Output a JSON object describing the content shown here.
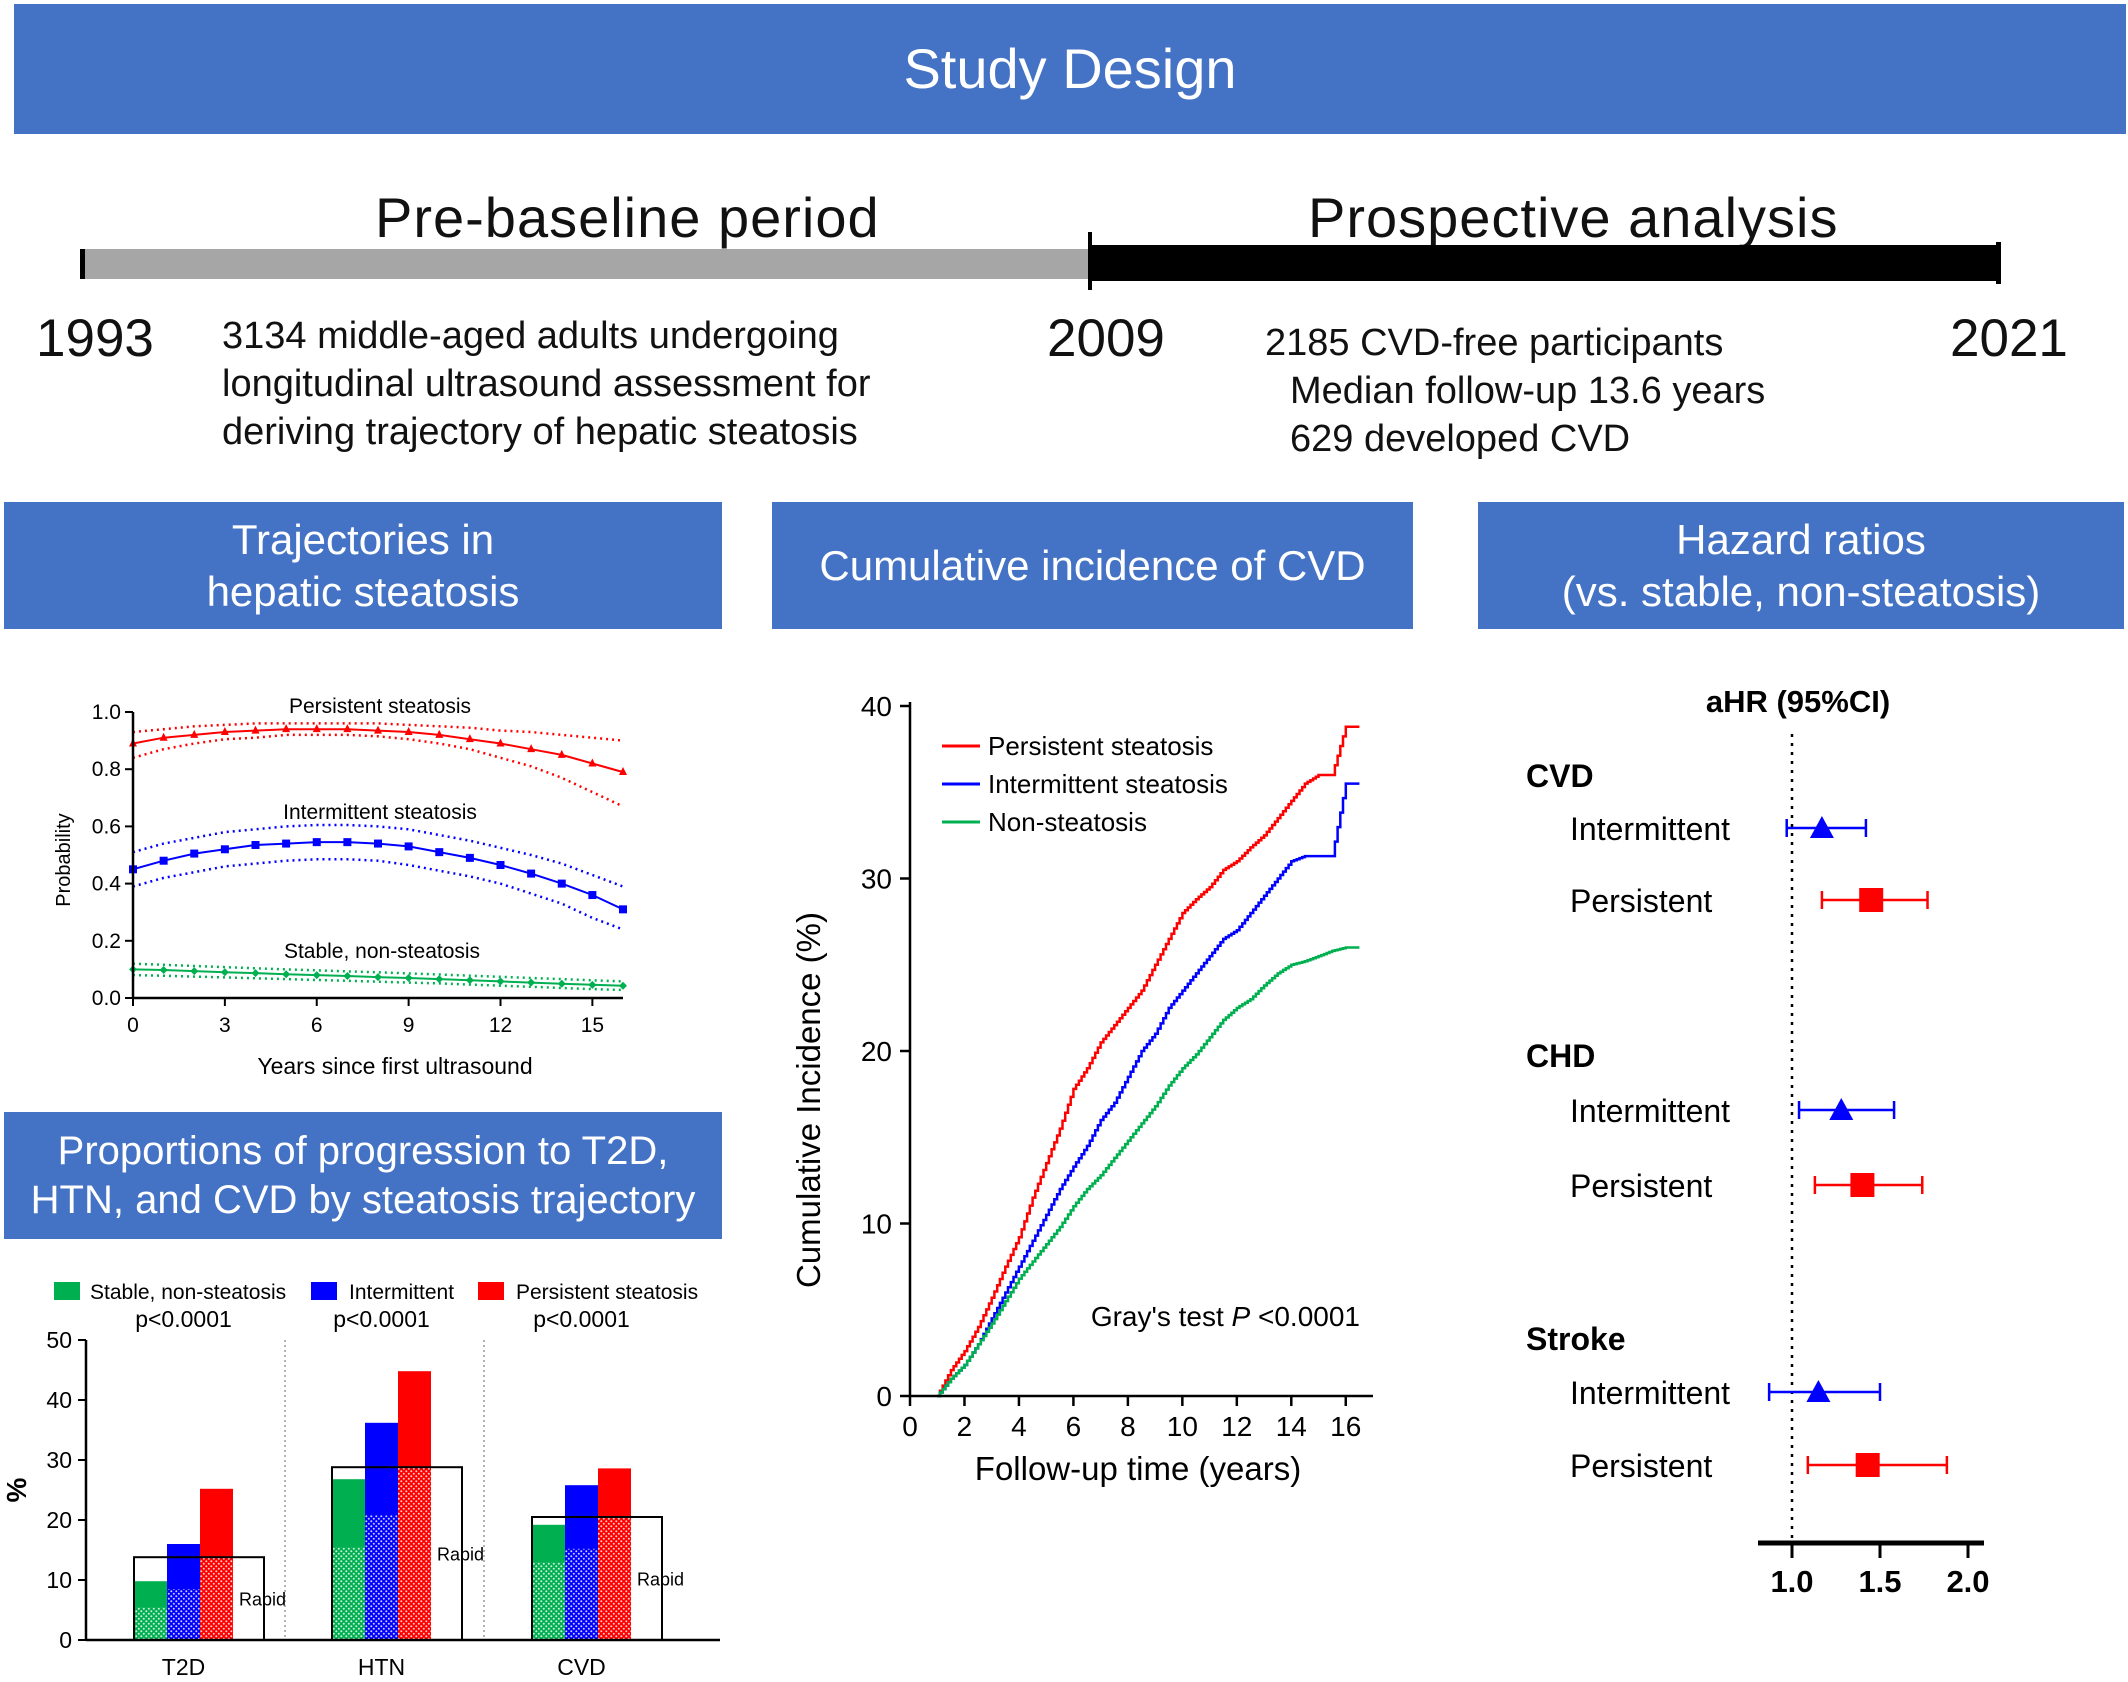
{
  "header": {
    "title": "Study Design"
  },
  "timeline": {
    "pre_label": "Pre-baseline period",
    "post_label": "Prospective analysis",
    "year_start": "1993",
    "year_mid": "2009",
    "year_end": "2021",
    "pre_desc": [
      "3134 middle-aged adults undergoing",
      "longitudinal ultrasound assessment for",
      "deriving trajectory of hepatic steatosis"
    ],
    "post_desc": [
      "2185 CVD-free participants",
      "Median follow-up 13.6 years",
      "629 developed CVD"
    ],
    "colors": {
      "pre": "#a6a6a6",
      "post": "#000000"
    }
  },
  "panels": {
    "trajectories": [
      "Trajectories in",
      "hepatic steatosis"
    ],
    "incidence": "Cumulative incidence of CVD",
    "hazard": [
      "Hazard ratios",
      "(vs. stable, non-steatosis)"
    ],
    "proportions": [
      "Proportions of progression to T2D,",
      "HTN, and CVD by steatosis trajectory"
    ]
  },
  "chart_data": [
    {
      "id": "trajectory",
      "type": "line",
      "xlabel": "Years since first ultrasound",
      "ylabel": "Probability",
      "xlim": [
        0,
        16
      ],
      "ylim": [
        0,
        1
      ],
      "xticks": [
        "0",
        "3",
        "6",
        "9",
        "12",
        "15"
      ],
      "yticks": [
        "0.0",
        "0.2",
        "0.4",
        "0.6",
        "0.8",
        "1.0"
      ],
      "x": [
        0,
        1,
        2,
        3,
        4,
        5,
        6,
        7,
        8,
        9,
        10,
        11,
        12,
        13,
        14,
        15,
        16
      ],
      "series": [
        {
          "name": "Persistent steatosis",
          "color": "#ff0000",
          "marker": "triangle",
          "values": [
            0.89,
            0.91,
            0.92,
            0.93,
            0.935,
            0.94,
            0.94,
            0.94,
            0.935,
            0.93,
            0.92,
            0.905,
            0.89,
            0.87,
            0.85,
            0.82,
            0.79
          ],
          "upper": [
            0.93,
            0.94,
            0.95,
            0.955,
            0.96,
            0.96,
            0.96,
            0.96,
            0.96,
            0.955,
            0.95,
            0.945,
            0.935,
            0.93,
            0.92,
            0.91,
            0.9
          ],
          "lower": [
            0.84,
            0.87,
            0.89,
            0.905,
            0.91,
            0.92,
            0.92,
            0.92,
            0.915,
            0.905,
            0.89,
            0.87,
            0.84,
            0.81,
            0.77,
            0.72,
            0.67
          ]
        },
        {
          "name": "Intermittent steatosis",
          "color": "#0000ff",
          "marker": "square",
          "values": [
            0.45,
            0.48,
            0.505,
            0.52,
            0.535,
            0.54,
            0.545,
            0.545,
            0.54,
            0.53,
            0.51,
            0.49,
            0.465,
            0.435,
            0.4,
            0.36,
            0.31
          ],
          "upper": [
            0.51,
            0.54,
            0.56,
            0.58,
            0.59,
            0.6,
            0.605,
            0.605,
            0.6,
            0.59,
            0.57,
            0.55,
            0.525,
            0.5,
            0.47,
            0.43,
            0.39
          ],
          "lower": [
            0.39,
            0.42,
            0.44,
            0.46,
            0.47,
            0.48,
            0.485,
            0.485,
            0.48,
            0.465,
            0.445,
            0.425,
            0.4,
            0.365,
            0.33,
            0.28,
            0.24
          ]
        },
        {
          "name": "Stable, non-steatosis",
          "color": "#00b050",
          "marker": "diamond",
          "values": [
            0.1,
            0.098,
            0.094,
            0.09,
            0.087,
            0.083,
            0.08,
            0.077,
            0.073,
            0.07,
            0.066,
            0.062,
            0.058,
            0.054,
            0.05,
            0.046,
            0.043
          ],
          "upper": [
            0.12,
            0.116,
            0.112,
            0.108,
            0.104,
            0.1,
            0.097,
            0.093,
            0.09,
            0.086,
            0.082,
            0.078,
            0.074,
            0.07,
            0.066,
            0.062,
            0.058
          ],
          "lower": [
            0.08,
            0.078,
            0.075,
            0.072,
            0.069,
            0.066,
            0.063,
            0.06,
            0.057,
            0.054,
            0.051,
            0.047,
            0.043,
            0.039,
            0.035,
            0.031,
            0.028
          ]
        }
      ]
    },
    {
      "id": "cumulative_incidence",
      "type": "line",
      "step": true,
      "xlabel": "Follow-up time (years)",
      "ylabel": "Cumulative Incidence (%)",
      "xlim": [
        0,
        17
      ],
      "ylim": [
        0,
        40
      ],
      "xticks": [
        "0",
        "2",
        "4",
        "6",
        "8",
        "10",
        "12",
        "14",
        "16"
      ],
      "yticks": [
        "0",
        "10",
        "20",
        "30",
        "40"
      ],
      "x": [
        1,
        1.5,
        2,
        2.5,
        3,
        3.5,
        4,
        4.5,
        5,
        5.5,
        6,
        6.5,
        7,
        7.5,
        8,
        8.5,
        9,
        9.5,
        10,
        10.5,
        11,
        11.5,
        12,
        12.5,
        13,
        13.5,
        14,
        14.5,
        15,
        15.5,
        16,
        16.5
      ],
      "annotation": "Gray's test",
      "annotation_p": "P",
      "annotation_value": "<0.0001",
      "series": [
        {
          "name": "Persistent steatosis",
          "color": "#ff0000",
          "values": [
            0,
            1.5,
            2.6,
            4,
            5.7,
            7.5,
            9.2,
            11.5,
            13.5,
            15.5,
            17.8,
            19,
            20.5,
            21.5,
            22.5,
            23.5,
            25,
            26.5,
            28,
            28.8,
            29.5,
            30.5,
            31,
            31.8,
            32.5,
            33.5,
            34.5,
            35.5,
            36,
            36,
            38.8,
            38.8
          ]
        },
        {
          "name": "Intermittent steatosis",
          "color": "#0000ff",
          "values": [
            0,
            1,
            1.8,
            3,
            4.5,
            6,
            7.5,
            9,
            10.5,
            12,
            13.3,
            14.5,
            16,
            17,
            18.5,
            20,
            21,
            22.5,
            23.5,
            24.5,
            25.5,
            26.5,
            27,
            28,
            29,
            30,
            31,
            31.3,
            31.3,
            31.3,
            35.5,
            35.5
          ]
        },
        {
          "name": "Non-steatosis",
          "color": "#00b050",
          "values": [
            0,
            1,
            1.8,
            3,
            4.2,
            5.5,
            6.8,
            7.8,
            8.8,
            9.8,
            11,
            12,
            12.8,
            13.8,
            14.8,
            15.8,
            16.8,
            18,
            19,
            19.8,
            20.8,
            21.8,
            22.5,
            23,
            23.8,
            24.5,
            25,
            25.2,
            25.5,
            25.8,
            26,
            26
          ]
        }
      ]
    },
    {
      "id": "hazard_ratios",
      "type": "scatter",
      "subtype": "forest",
      "header": "aHR (95%CI)",
      "xlim": [
        0.85,
        2.15
      ],
      "xticks": [
        "1.0",
        "1.5",
        "2.0"
      ],
      "reference": 1.0,
      "groups": [
        {
          "name": "CVD",
          "rows": [
            {
              "label": "Intermittent",
              "hr": 1.17,
              "lo": 0.97,
              "hi": 1.42,
              "color": "#0000ff",
              "marker": "triangle"
            },
            {
              "label": "Persistent",
              "hr": 1.45,
              "lo": 1.17,
              "hi": 1.77,
              "color": "#ff0000",
              "marker": "square"
            }
          ]
        },
        {
          "name": "CHD",
          "rows": [
            {
              "label": "Intermittent",
              "hr": 1.28,
              "lo": 1.04,
              "hi": 1.58,
              "color": "#0000ff",
              "marker": "triangle"
            },
            {
              "label": "Persistent",
              "hr": 1.4,
              "lo": 1.13,
              "hi": 1.74,
              "color": "#ff0000",
              "marker": "square"
            }
          ]
        },
        {
          "name": "Stroke",
          "rows": [
            {
              "label": "Intermittent",
              "hr": 1.15,
              "lo": 0.87,
              "hi": 1.5,
              "color": "#0000ff",
              "marker": "triangle"
            },
            {
              "label": "Persistent",
              "hr": 1.43,
              "lo": 1.09,
              "hi": 1.88,
              "color": "#ff0000",
              "marker": "square"
            }
          ]
        }
      ]
    },
    {
      "id": "progression",
      "type": "bar",
      "ylabel": "%",
      "ylim": [
        0,
        50
      ],
      "yticks": [
        "0",
        "10",
        "20",
        "30",
        "40",
        "50"
      ],
      "categories": [
        "T2D",
        "HTN",
        "CVD"
      ],
      "p_values": [
        "p<0.0001",
        "p<0.0001",
        "p<0.0001"
      ],
      "rapid_label": "Rapid",
      "series": [
        {
          "name": "Stable, non-steatosis",
          "color": "#00b050",
          "values": [
            9.8,
            26.8,
            19.2
          ],
          "rapid": [
            5.5,
            15.5,
            13
          ]
        },
        {
          "name": "Intermittent",
          "color": "#0000ff",
          "values": [
            16,
            36.2,
            25.8
          ],
          "rapid": [
            8.5,
            20.8,
            15.2
          ]
        },
        {
          "name": "Persistent steatosis",
          "color": "#ff0000",
          "values": [
            25.2,
            44.8,
            28.6
          ],
          "rapid": [
            13.8,
            28.8,
            20.5
          ]
        }
      ],
      "overall_rapid": [
        13.8,
        28.8,
        20.5
      ]
    }
  ]
}
